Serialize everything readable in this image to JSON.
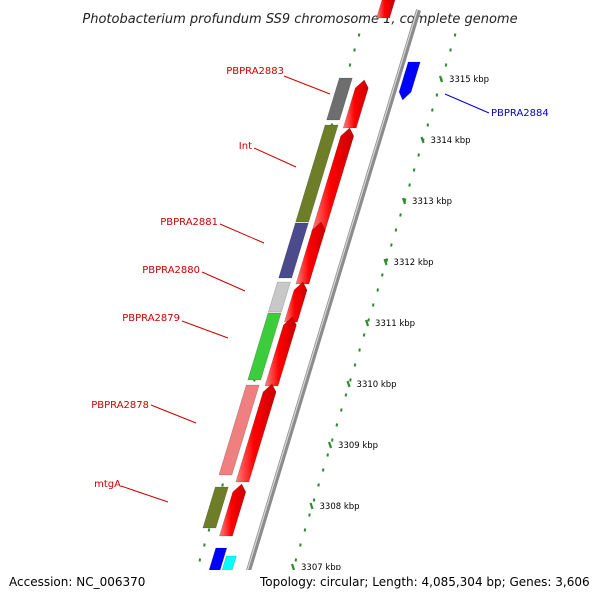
{
  "title": "Photobacterium profundum SS9 chromosome 1, complete genome",
  "footer": {
    "accession": "Accession: NC_006370",
    "summary": "Topology: circular; Length: 4,085,304 bp; Genes: 3,606"
  },
  "colors": {
    "backbone": "#8c8c8c",
    "tick": "#2e8b2e",
    "forward_arrow": "#ff0000",
    "reverse_arrow": "#0000ff",
    "cyan_arrow": "#00ffff",
    "label_red": "#cc0000",
    "label_blue": "#0000cc"
  },
  "ticks": [
    {
      "label": "3315 kbp"
    },
    {
      "label": "3314 kbp"
    },
    {
      "label": "3313 kbp"
    },
    {
      "label": "3312 kbp"
    },
    {
      "label": "3311 kbp"
    },
    {
      "label": "3310 kbp"
    },
    {
      "label": "3309 kbp"
    },
    {
      "label": "3308 kbp"
    },
    {
      "label": "3307 kbp"
    }
  ],
  "gene_labels": [
    {
      "text": "PBPRA2883",
      "color": "#cc0000"
    },
    {
      "text": "Int",
      "color": "#cc0000"
    },
    {
      "text": "PBPRA2881",
      "color": "#cc0000"
    },
    {
      "text": "PBPRA2880",
      "color": "#cc0000"
    },
    {
      "text": "PBPRA2879",
      "color": "#cc0000"
    },
    {
      "text": "PBPRA2878",
      "color": "#cc0000"
    },
    {
      "text": "mtgA",
      "color": "#cc0000"
    },
    {
      "text": "PBPRA2884",
      "color": "#0000cc"
    }
  ],
  "cog_blocks": [
    {
      "name": "PBPRA2883",
      "color": "#6e6e6e"
    },
    {
      "name": "Int",
      "color": "#6e7e28"
    },
    {
      "name": "PBPRA2881",
      "color": "#4a4a8c"
    },
    {
      "name": "PBPRA2880",
      "color": "#c8c8c8"
    },
    {
      "name": "PBPRA2879",
      "color": "#3ccc3c"
    },
    {
      "name": "PBPRA2878",
      "color": "#f08080"
    },
    {
      "name": "mtgA",
      "color": "#6e7e28"
    }
  ]
}
